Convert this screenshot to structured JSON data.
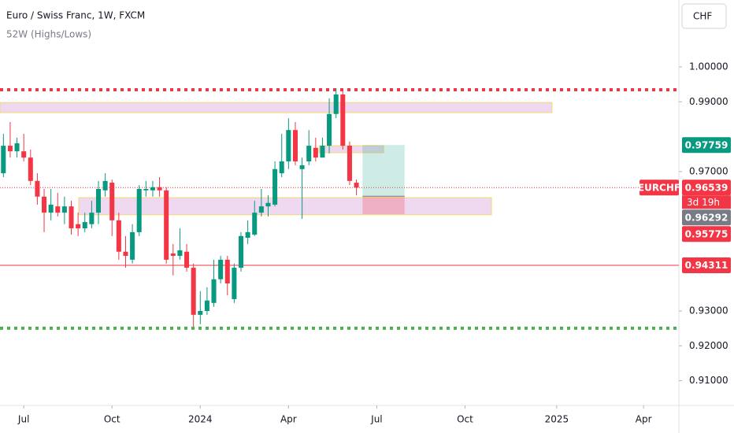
{
  "chart_data": {
    "type": "candlestick",
    "title": "Euro / Swiss Franc, 1W, FXCM",
    "subtitle": "52W (Highs/Lows)",
    "currency_button": "CHF",
    "symbol": "EURCHF",
    "up_color": "#089981",
    "down_color": "#f23645",
    "x": [
      0,
      1,
      2,
      3,
      4,
      5,
      6,
      7,
      8,
      9,
      10,
      11,
      12,
      13,
      14,
      15,
      16,
      17,
      18,
      19,
      20,
      21,
      22,
      23,
      24,
      25,
      26,
      27,
      28,
      29,
      30,
      31,
      32,
      33,
      34,
      35,
      36,
      37,
      38,
      39,
      40,
      41,
      42,
      43,
      44,
      45,
      46,
      47,
      48,
      49,
      50,
      51,
      52
    ],
    "open": [
      0.9695,
      0.9774,
      0.9758,
      0.9758,
      0.974,
      0.9673,
      0.9628,
      0.9582,
      0.96,
      0.9582,
      0.96,
      0.9549,
      0.9537,
      0.9549,
      0.9582,
      0.9646,
      0.9668,
      0.956,
      0.947,
      0.9447,
      0.9526,
      0.9646,
      0.9646,
      0.9655,
      0.9646,
      0.9465,
      0.9458,
      0.947,
      0.9424,
      0.9289,
      0.93,
      0.9323,
      0.9391,
      0.9447,
      0.9334,
      0.9424,
      0.951,
      0.9519,
      0.9582,
      0.96,
      0.9605,
      0.9695,
      0.9729,
      0.9819,
      0.9707,
      0.9729,
      0.9768,
      0.974,
      0.9774,
      0.9865,
      0.9921,
      0.9774,
      0.9668
    ],
    "high": [
      0.9808,
      0.9842,
      0.9797,
      0.9808,
      0.9763,
      0.9695,
      0.965,
      0.965,
      0.9639,
      0.9628,
      0.9616,
      0.9582,
      0.9582,
      0.9616,
      0.9673,
      0.9695,
      0.9677,
      0.9582,
      0.9515,
      0.9549,
      0.9661,
      0.9673,
      0.9673,
      0.9684,
      0.9655,
      0.9492,
      0.9537,
      0.9492,
      0.9436,
      0.9357,
      0.9368,
      0.9447,
      0.9458,
      0.9458,
      0.9436,
      0.9526,
      0.956,
      0.9616,
      0.965,
      0.9632,
      0.9729,
      0.9808,
      0.9853,
      0.9842,
      0.974,
      0.9819,
      0.9797,
      0.9797,
      0.991,
      0.9939,
      0.9932,
      0.9786,
      0.9677
    ],
    "low": [
      0.9684,
      0.974,
      0.974,
      0.9729,
      0.9661,
      0.9605,
      0.9526,
      0.956,
      0.9571,
      0.9549,
      0.9519,
      0.9515,
      0.9526,
      0.9537,
      0.9549,
      0.9628,
      0.9515,
      0.9447,
      0.9424,
      0.9436,
      0.9515,
      0.9628,
      0.9628,
      0.9628,
      0.9436,
      0.9402,
      0.9447,
      0.9413,
      0.9255,
      0.9262,
      0.9289,
      0.9312,
      0.9379,
      0.9345,
      0.9323,
      0.9413,
      0.9492,
      0.9515,
      0.9571,
      0.9571,
      0.96,
      0.9684,
      0.9707,
      0.9718,
      0.9564,
      0.9718,
      0.9729,
      0.974,
      0.9752,
      0.9853,
      0.9763,
      0.9661,
      0.9632
    ],
    "close": [
      0.9774,
      0.9758,
      0.9781,
      0.974,
      0.9673,
      0.9628,
      0.9582,
      0.9605,
      0.9582,
      0.96,
      0.9537,
      0.9537,
      0.9555,
      0.9582,
      0.965,
      0.9673,
      0.956,
      0.947,
      0.9458,
      0.9526,
      0.965,
      0.965,
      0.9655,
      0.9646,
      0.9447,
      0.9458,
      0.9474,
      0.9424,
      0.9289,
      0.93,
      0.933,
      0.9391,
      0.9447,
      0.9379,
      0.9424,
      0.9515,
      0.9526,
      0.9582,
      0.96,
      0.961,
      0.9707,
      0.9729,
      0.9819,
      0.9729,
      0.9718,
      0.9774,
      0.974,
      0.9774,
      0.9865,
      0.9921,
      0.9774,
      0.9673,
      0.96539
    ],
    "xlim": [
      -0.5,
      99.5
    ],
    "ylim": [
      0.9029,
      1.0192
    ],
    "xticks": [
      {
        "value": 3,
        "label": "Jul"
      },
      {
        "value": 16,
        "label": "Oct"
      },
      {
        "value": 29,
        "label": "2024"
      },
      {
        "value": 42,
        "label": "Apr"
      },
      {
        "value": 55,
        "label": "Jul"
      },
      {
        "value": 68,
        "label": "Oct"
      },
      {
        "value": 81.5,
        "label": "2025"
      },
      {
        "value": 94.3,
        "label": "Apr"
      }
    ],
    "yticks": [
      {
        "value": 1.0,
        "label": "1.00000"
      },
      {
        "value": 0.99,
        "label": "0.99000"
      },
      {
        "value": 0.97,
        "label": "0.97000"
      },
      {
        "value": 0.93,
        "label": "0.93000"
      },
      {
        "value": 0.92,
        "label": "0.92000"
      },
      {
        "value": 0.91,
        "label": "0.91000"
      }
    ],
    "levels": [
      {
        "value": 0.99345,
        "color": "#f23645",
        "style": "dotted"
      },
      {
        "value": 0.92506,
        "color": "#4caf50",
        "style": "dotted"
      },
      {
        "value": 0.94311,
        "color": "#f23645",
        "style": "solid"
      },
      {
        "value": 0.96539,
        "color": "#f23645",
        "style": "dotted-thin"
      }
    ],
    "zones": [
      {
        "x": [
          -0.5,
          80.8
        ],
        "y": [
          0.9869,
          0.9898
        ]
      },
      {
        "x": [
          11.1,
          71.9
        ],
        "y": [
          0.9576,
          0.9625
        ]
      },
      {
        "x": [
          46.5,
          56.0
        ],
        "y": [
          0.9754,
          0.9774
        ]
      }
    ],
    "position": {
      "x": [
        52.9,
        59.1
      ],
      "target": 0.97759,
      "entry": 0.96292,
      "stop": 0.95775
    },
    "price_labels": [
      {
        "value": 0.97759,
        "label": "0.97759",
        "color": "#089981"
      },
      {
        "value": 0.96539,
        "label": "0.96539",
        "color": "#f23645",
        "countdown": "3d 19h"
      },
      {
        "value": 0.96292,
        "label": "0.96292",
        "color": "#787b86"
      },
      {
        "value": 0.95775,
        "label": "0.95775",
        "color": "#f23645"
      },
      {
        "value": 0.94311,
        "label": "0.94311",
        "color": "#f23645"
      }
    ]
  }
}
